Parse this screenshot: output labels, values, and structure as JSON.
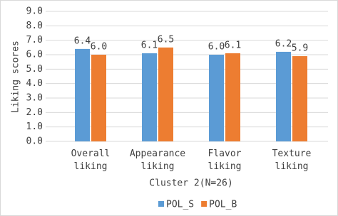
{
  "chart_data": {
    "type": "bar",
    "y_label": "Liking scores",
    "x_label": "Cluster 2(N=26)",
    "categories": [
      [
        "Overall",
        "liking"
      ],
      [
        "Appearance",
        "liking"
      ],
      [
        "Flavor",
        "liking"
      ],
      [
        "Texture",
        "liking"
      ]
    ],
    "series": [
      {
        "name": "POL_S",
        "color": "#5b9bd5",
        "values": [
          6.4,
          6.1,
          6,
          6.2
        ],
        "value_labels": [
          "6.4",
          "6.1",
          "6.0",
          "6.2"
        ]
      },
      {
        "name": "POL_B",
        "color": "#ed7d31",
        "values": [
          6,
          6.5,
          6.1,
          5.9
        ],
        "value_labels": [
          "6.0",
          "6.5",
          "6.1",
          "5.9"
        ]
      }
    ],
    "ylim": [
      0,
      9
    ],
    "yticks": [
      {
        "value": 0,
        "label": "0.0"
      },
      {
        "value": 1,
        "label": "1.0"
      },
      {
        "value": 2,
        "label": "2.0"
      },
      {
        "value": 3,
        "label": "3.0"
      },
      {
        "value": 4,
        "label": "4.0"
      },
      {
        "value": 5,
        "label": "5.0"
      },
      {
        "value": 6,
        "label": "6.0"
      },
      {
        "value": 7,
        "label": "7.0"
      },
      {
        "value": 8,
        "label": "8.0"
      },
      {
        "value": 9,
        "label": "9.0"
      }
    ],
    "grid": true,
    "legend": "bottom"
  }
}
